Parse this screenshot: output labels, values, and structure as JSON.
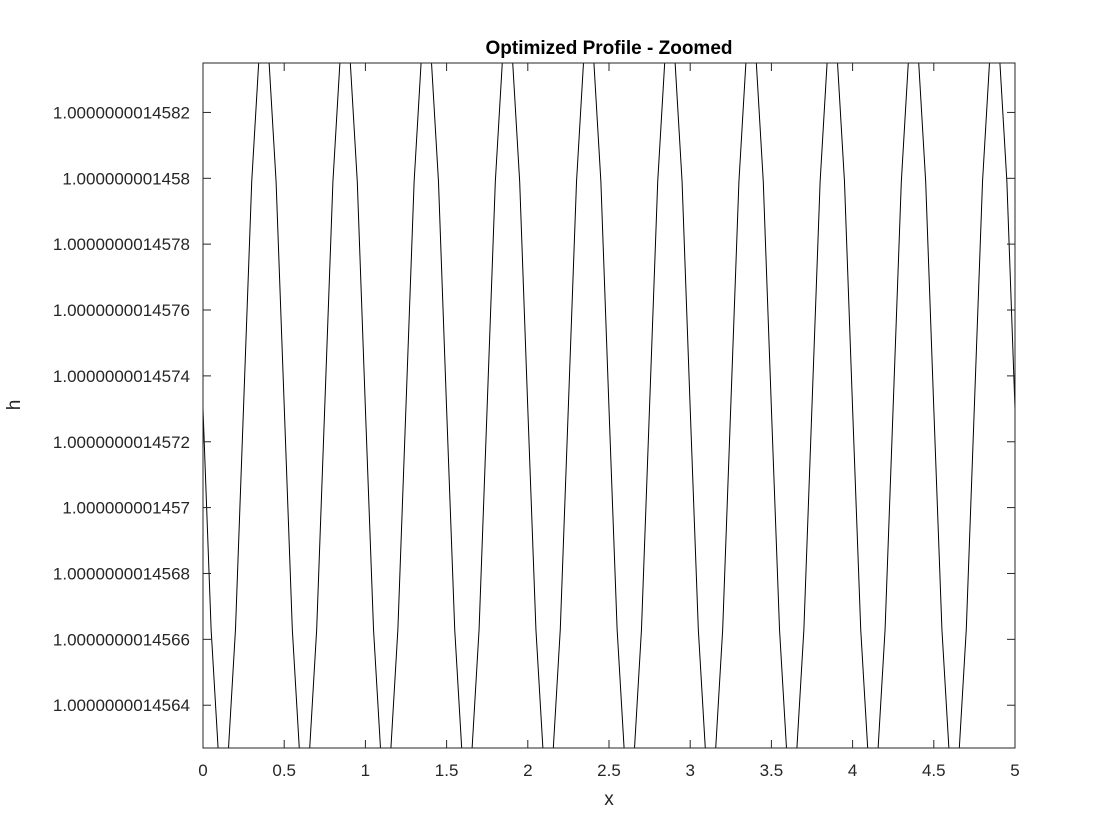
{
  "chart_data": {
    "type": "line",
    "title": "Optimized Profile - Zoomed",
    "xlabel": "x",
    "ylabel": "h",
    "xlim": [
      0,
      5
    ],
    "ylim": [
      1.00000000145627,
      1.00000000145835
    ],
    "grid": false,
    "box": true,
    "line_color": "#000000",
    "xticks": [
      {
        "value": 0,
        "label": "0"
      },
      {
        "value": 0.5,
        "label": "0.5"
      },
      {
        "value": 1,
        "label": "1"
      },
      {
        "value": 1.5,
        "label": "1.5"
      },
      {
        "value": 2,
        "label": "2"
      },
      {
        "value": 2.5,
        "label": "2.5"
      },
      {
        "value": 3,
        "label": "3"
      },
      {
        "value": 3.5,
        "label": "3.5"
      },
      {
        "value": 4,
        "label": "4"
      },
      {
        "value": 4.5,
        "label": "4.5"
      },
      {
        "value": 5,
        "label": "5"
      }
    ],
    "yticks": [
      {
        "value": 1.0000000014564,
        "label": "1.0000000014564"
      },
      {
        "value": 1.0000000014566,
        "label": "1.0000000014566"
      },
      {
        "value": 1.0000000014568,
        "label": "1.0000000014568"
      },
      {
        "value": 1.000000001457,
        "label": "1.000000001457"
      },
      {
        "value": 1.0000000014572,
        "label": "1.0000000014572"
      },
      {
        "value": 1.0000000014574,
        "label": "1.0000000014574"
      },
      {
        "value": 1.0000000014576,
        "label": "1.0000000014576"
      },
      {
        "value": 1.0000000014578,
        "label": "1.0000000014578"
      },
      {
        "value": 1.000000001458,
        "label": "1.000000001458"
      },
      {
        "value": 1.0000000014582,
        "label": "1.0000000014582"
      }
    ],
    "series": [
      {
        "x": [
          0,
          0.05,
          0.1,
          0.15,
          0.2,
          0.25,
          0.3,
          0.35,
          0.4,
          0.45,
          0.5,
          0.55,
          0.6,
          0.65,
          0.7,
          0.75,
          0.8,
          0.85,
          0.9,
          0.95,
          1.0,
          1.05,
          1.1,
          1.15,
          1.2,
          1.25,
          1.3,
          1.35,
          1.4,
          1.45,
          1.5,
          1.55,
          1.6,
          1.65,
          1.7,
          1.75,
          1.8,
          1.85,
          1.9,
          1.95,
          2.0,
          2.05,
          2.1,
          2.15,
          2.2,
          2.25,
          2.3,
          2.35,
          2.4,
          2.45,
          2.5,
          2.55,
          2.6,
          2.65,
          2.7,
          2.75,
          2.8,
          2.85,
          2.9,
          2.95,
          3.0,
          3.05,
          3.1,
          3.15,
          3.2,
          3.25,
          3.3,
          3.35,
          3.4,
          3.45,
          3.5,
          3.55,
          3.6,
          3.65,
          3.7,
          3.75,
          3.8,
          3.85,
          3.9,
          3.95,
          4.0,
          4.05,
          4.1,
          4.15,
          4.2,
          4.25,
          4.3,
          4.35,
          4.4,
          4.45,
          4.5,
          4.55,
          4.6,
          4.65,
          4.7,
          4.75,
          4.8,
          4.85,
          4.9,
          4.95,
          5.0
        ],
        "y": [
          1.0000000014573,
          1.00000000145663,
          1.00000000145621,
          1.00000000145621,
          1.00000000145663,
          1.00000000145731,
          1.00000000145799,
          1.00000000145841,
          1.00000000145841,
          1.00000000145799,
          1.00000000145731,
          1.00000000145663,
          1.00000000145621,
          1.00000000145621,
          1.00000000145663,
          1.00000000145731,
          1.00000000145799,
          1.00000000145841,
          1.00000000145841,
          1.00000000145799,
          1.0000000014573,
          1.00000000145663,
          1.00000000145621,
          1.00000000145621,
          1.00000000145663,
          1.00000000145731,
          1.00000000145799,
          1.00000000145841,
          1.00000000145841,
          1.00000000145799,
          1.0000000014573,
          1.00000000145663,
          1.00000000145621,
          1.00000000145621,
          1.00000000145663,
          1.00000000145731,
          1.00000000145799,
          1.00000000145841,
          1.00000000145841,
          1.00000000145799,
          1.0000000014573,
          1.00000000145663,
          1.00000000145621,
          1.00000000145621,
          1.00000000145663,
          1.00000000145731,
          1.00000000145799,
          1.00000000145841,
          1.00000000145841,
          1.00000000145799,
          1.0000000014573,
          1.00000000145663,
          1.00000000145621,
          1.00000000145621,
          1.00000000145663,
          1.00000000145731,
          1.00000000145799,
          1.00000000145841,
          1.00000000145841,
          1.00000000145799,
          1.0000000014573,
          1.00000000145663,
          1.00000000145621,
          1.00000000145621,
          1.00000000145663,
          1.00000000145731,
          1.00000000145799,
          1.00000000145841,
          1.00000000145841,
          1.00000000145799,
          1.0000000014573,
          1.00000000145663,
          1.00000000145621,
          1.00000000145621,
          1.00000000145663,
          1.00000000145731,
          1.00000000145799,
          1.00000000145841,
          1.00000000145841,
          1.00000000145799,
          1.0000000014573,
          1.00000000145663,
          1.00000000145621,
          1.00000000145621,
          1.00000000145663,
          1.00000000145731,
          1.00000000145799,
          1.00000000145841,
          1.00000000145841,
          1.00000000145799,
          1.0000000014573,
          1.00000000145663,
          1.00000000145621,
          1.00000000145621,
          1.00000000145663,
          1.00000000145731,
          1.00000000145799,
          1.00000000145841,
          1.00000000145841,
          1.00000000145799,
          1.0000000014573
        ]
      }
    ]
  }
}
